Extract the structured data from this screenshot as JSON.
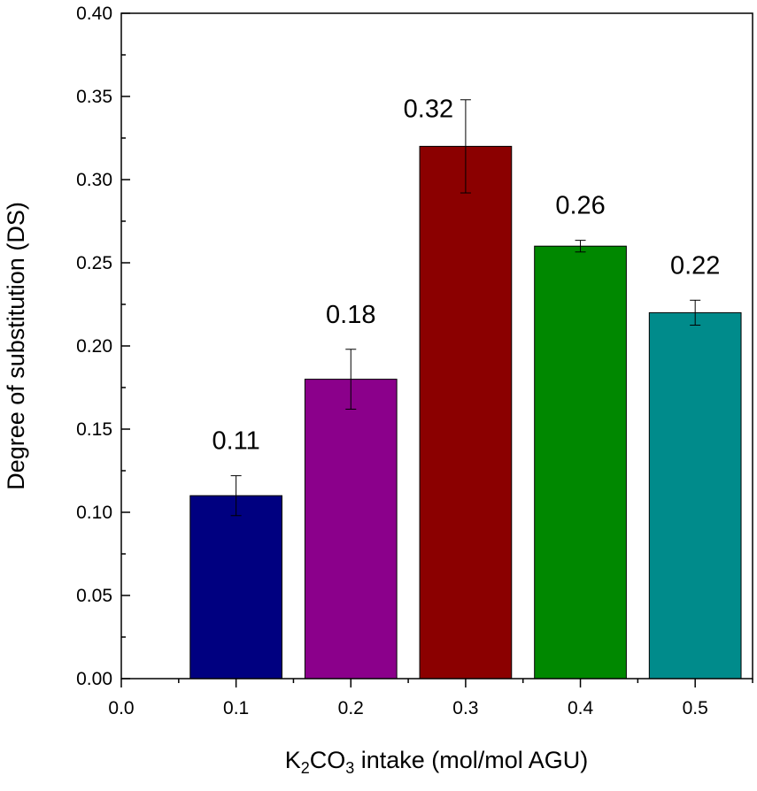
{
  "chart_data": {
    "type": "bar",
    "title": "",
    "xlabel": {
      "main": "K",
      "sub1": "2",
      "mid": "CO",
      "sub2": "3",
      "rest": " intake (mol/mol AGU)"
    },
    "ylabel": "Degree of substitution (DS)",
    "x": [
      0.1,
      0.2,
      0.3,
      0.4,
      0.5
    ],
    "values": [
      0.11,
      0.18,
      0.32,
      0.26,
      0.22
    ],
    "errors": [
      0.012,
      0.018,
      0.028,
      0.0035,
      0.0075
    ],
    "data_labels": [
      "0.11",
      "0.18",
      "0.32",
      "0.26",
      "0.22"
    ],
    "colors": [
      "#000080",
      "#8B008B",
      "#8B0000",
      "#008800",
      "#008B8B"
    ],
    "bar_width": 0.08,
    "xlim": [
      0,
      0.55
    ],
    "ylim": [
      0,
      0.4
    ],
    "xticks": [
      "0.0",
      "0.1",
      "0.2",
      "0.3",
      "0.4",
      "0.5"
    ],
    "yticks": [
      "0.00",
      "0.05",
      "0.10",
      "0.15",
      "0.20",
      "0.25",
      "0.30",
      "0.35",
      "0.40"
    ],
    "grid": false,
    "legend": "none"
  }
}
